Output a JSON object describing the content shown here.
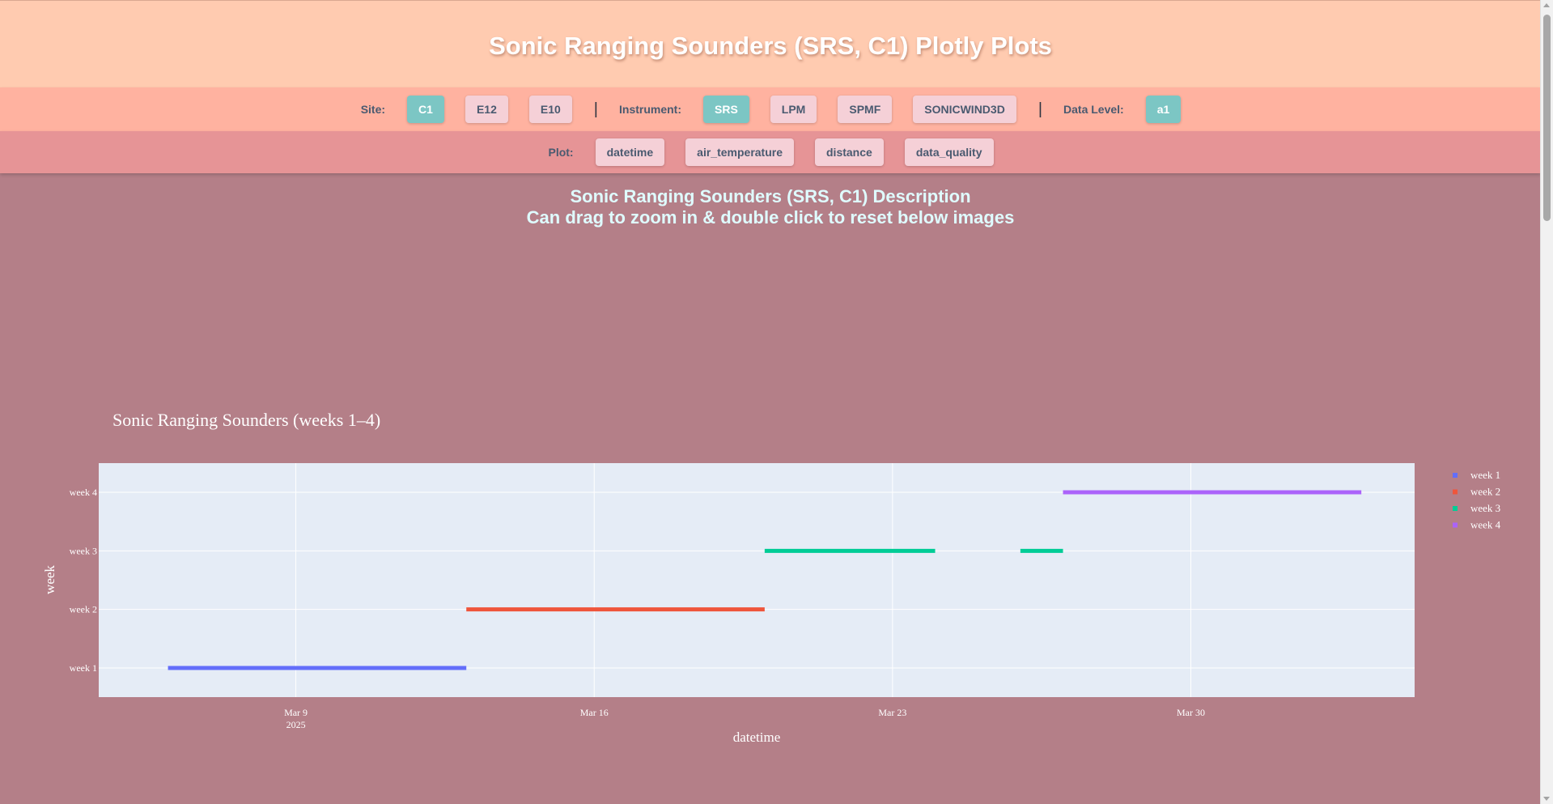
{
  "header": {
    "title": "Sonic Ranging Sounders (SRS, C1) Plotly Plots"
  },
  "nav": {
    "site_label": "Site:",
    "sites": [
      {
        "label": "C1",
        "active": true
      },
      {
        "label": "E12",
        "active": false
      },
      {
        "label": "E10",
        "active": false
      }
    ],
    "separator": "|",
    "instrument_label": "Instrument:",
    "instruments": [
      {
        "label": "SRS",
        "active": true
      },
      {
        "label": "LPM",
        "active": false
      },
      {
        "label": "SPMF",
        "active": false
      },
      {
        "label": "SONICWIND3D",
        "active": false
      }
    ],
    "level_label": "Data Level:",
    "levels": [
      {
        "label": "a1",
        "active": true
      }
    ],
    "plot_label": "Plot:",
    "plots": [
      {
        "label": "datetime"
      },
      {
        "label": "air_temperature"
      },
      {
        "label": "distance"
      },
      {
        "label": "data_quality"
      }
    ]
  },
  "description": {
    "line1": "Sonic Ranging Sounders (SRS, C1) Description",
    "line2": "Can drag to zoom in & double click to reset below images"
  },
  "colors": {
    "accent_active": "#7cc6c4",
    "button": "#f5d0d7",
    "page_bg": "#b47f88"
  },
  "chart_data": {
    "type": "line",
    "title": "Sonic Ranging Sounders (weeks 1–4)",
    "xlabel": "datetime",
    "ylabel": "week",
    "categories": [
      "week 1",
      "week 2",
      "week 3",
      "week 4"
    ],
    "x_ticks": [
      "Mar 9",
      "Mar 16",
      "Mar 23",
      "Mar 30"
    ],
    "x_tick_sublabel": "2025",
    "xlim": [
      "2025-03-04 09:00",
      "2025-04-04 06:00"
    ],
    "grid": true,
    "legend_position": "top-right",
    "series": [
      {
        "name": "week 1",
        "color": "#636efa",
        "segments": [
          [
            "2025-03-06",
            "2025-03-13"
          ]
        ]
      },
      {
        "name": "week 2",
        "color": "#ef553b",
        "segments": [
          [
            "2025-03-13",
            "2025-03-20"
          ]
        ]
      },
      {
        "name": "week 3",
        "color": "#00cc96",
        "segments": [
          [
            "2025-03-20",
            "2025-03-24"
          ],
          [
            "2025-03-26",
            "2025-03-27"
          ]
        ]
      },
      {
        "name": "week 4",
        "color": "#ab63fa",
        "segments": [
          [
            "2025-03-27",
            "2025-04-03"
          ]
        ]
      }
    ]
  }
}
